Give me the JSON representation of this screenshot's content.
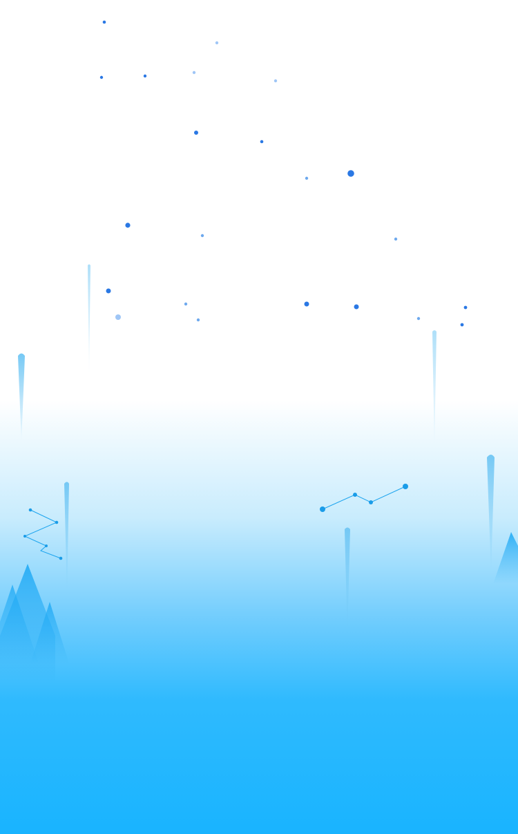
{
  "colors": {
    "background_top": "#ffffff",
    "background_bottom": "#19b4ff",
    "dot_dark": "#2a78e4",
    "dot_light": "#9fc6f6",
    "mountain": "#20aaf5",
    "streak": "#6fc6f4",
    "network_line": "#1aa3ee",
    "network_node": "#1a9ce8"
  }
}
